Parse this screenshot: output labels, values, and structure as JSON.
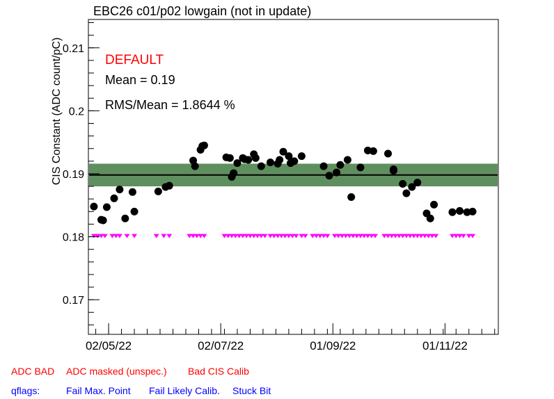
{
  "chart_data": {
    "type": "scatter",
    "title": "EBC26 c01/p02 lowgain (not in update)",
    "ylabel": "CIS Constant (ADC count/pC)",
    "xlabel": "",
    "ylim": [
      0.1645,
      0.2145
    ],
    "xlim": [
      "2022-04-21",
      "2022-11-30"
    ],
    "y_ticks": [
      "0.17",
      "0.18",
      "0.19",
      "0.2",
      "0.21"
    ],
    "y_tick_values": [
      0.17,
      0.18,
      0.19,
      0.2,
      0.21
    ],
    "x_ticks": [
      "02/05/22",
      "02/07/22",
      "01/09/22",
      "01/11/22"
    ],
    "x_tick_values": [
      "2022-05-02",
      "2022-07-02",
      "2022-09-01",
      "2022-11-01"
    ],
    "mean_line": 0.1898,
    "rms_band": [
      0.188,
      0.1916
    ],
    "info": {
      "status": "DEFAULT",
      "mean": "Mean = 0.19",
      "rms": "RMS/Mean = 1.8644 %"
    },
    "series": [
      {
        "marker": "circle",
        "color": "#000000",
        "points": [
          [
            "2022-04-24",
            0.1848
          ],
          [
            "2022-04-28",
            0.1827
          ],
          [
            "2022-04-29",
            0.1826
          ],
          [
            "2022-05-01",
            0.1847
          ],
          [
            "2022-05-05",
            0.1861
          ],
          [
            "2022-05-08",
            0.1875
          ],
          [
            "2022-05-11",
            0.1829
          ],
          [
            "2022-05-15",
            0.1871
          ],
          [
            "2022-05-16",
            0.184
          ],
          [
            "2022-05-29",
            0.1872
          ],
          [
            "2022-06-02",
            0.1879
          ],
          [
            "2022-06-04",
            0.1881
          ],
          [
            "2022-06-17",
            0.1921
          ],
          [
            "2022-06-18",
            0.1912
          ],
          [
            "2022-06-21",
            0.1938
          ],
          [
            "2022-06-22",
            0.1944
          ],
          [
            "2022-06-23",
            0.1945
          ],
          [
            "2022-07-05",
            0.1926
          ],
          [
            "2022-07-07",
            0.1925
          ],
          [
            "2022-07-08",
            0.1895
          ],
          [
            "2022-07-09",
            0.1901
          ],
          [
            "2022-07-11",
            0.1917
          ],
          [
            "2022-07-14",
            0.1925
          ],
          [
            "2022-07-15",
            0.1923
          ],
          [
            "2022-07-17",
            0.1922
          ],
          [
            "2022-07-20",
            0.1931
          ],
          [
            "2022-07-21",
            0.1925
          ],
          [
            "2022-07-24",
            0.1912
          ],
          [
            "2022-07-29",
            0.1918
          ],
          [
            "2022-08-02",
            0.1916
          ],
          [
            "2022-08-03",
            0.1922
          ],
          [
            "2022-08-05",
            0.1935
          ],
          [
            "2022-08-08",
            0.1928
          ],
          [
            "2022-08-09",
            0.1917
          ],
          [
            "2022-08-11",
            0.192
          ],
          [
            "2022-08-15",
            0.1928
          ],
          [
            "2022-08-27",
            0.1912
          ],
          [
            "2022-08-30",
            0.1897
          ],
          [
            "2022-09-03",
            0.1902
          ],
          [
            "2022-09-05",
            0.1914
          ],
          [
            "2022-09-09",
            0.1922
          ],
          [
            "2022-09-11",
            0.1863
          ],
          [
            "2022-09-16",
            0.191
          ],
          [
            "2022-09-20",
            0.1937
          ],
          [
            "2022-09-23",
            0.1936
          ],
          [
            "2022-10-01",
            0.1932
          ],
          [
            "2022-10-04",
            0.1907
          ],
          [
            "2022-10-04",
            0.1905
          ],
          [
            "2022-10-09",
            0.1884
          ],
          [
            "2022-10-11",
            0.1869
          ],
          [
            "2022-10-14",
            0.1879
          ],
          [
            "2022-10-17",
            0.1886
          ],
          [
            "2022-10-22",
            0.1837
          ],
          [
            "2022-10-24",
            0.1829
          ],
          [
            "2022-10-26",
            0.1851
          ],
          [
            "2022-11-05",
            0.1839
          ],
          [
            "2022-11-09",
            0.1841
          ],
          [
            "2022-11-13",
            0.1839
          ],
          [
            "2022-11-16",
            0.184
          ]
        ]
      },
      {
        "marker": "triangle-down",
        "color": "#ff00ff",
        "y": 0.1801,
        "dates": [
          "2022-04-24",
          "2022-04-26",
          "2022-04-28",
          "2022-04-30",
          "2022-05-04",
          "2022-05-06",
          "2022-05-08",
          "2022-05-12",
          "2022-05-16",
          "2022-05-28",
          "2022-06-01",
          "2022-06-04",
          "2022-06-15",
          "2022-06-17",
          "2022-06-19",
          "2022-06-21",
          "2022-06-23",
          "2022-07-04",
          "2022-07-06",
          "2022-07-08",
          "2022-07-10",
          "2022-07-12",
          "2022-07-14",
          "2022-07-16",
          "2022-07-18",
          "2022-07-20",
          "2022-07-22",
          "2022-07-24",
          "2022-07-26",
          "2022-07-29",
          "2022-07-31",
          "2022-08-02",
          "2022-08-04",
          "2022-08-06",
          "2022-08-08",
          "2022-08-10",
          "2022-08-12",
          "2022-08-15",
          "2022-08-17",
          "2022-08-21",
          "2022-08-23",
          "2022-08-25",
          "2022-08-27",
          "2022-08-29",
          "2022-09-02",
          "2022-09-04",
          "2022-09-06",
          "2022-09-08",
          "2022-09-10",
          "2022-09-12",
          "2022-09-14",
          "2022-09-16",
          "2022-09-18",
          "2022-09-20",
          "2022-09-22",
          "2022-09-24",
          "2022-09-29",
          "2022-10-01",
          "2022-10-03",
          "2022-10-05",
          "2022-10-07",
          "2022-10-09",
          "2022-10-11",
          "2022-10-13",
          "2022-10-15",
          "2022-10-17",
          "2022-10-19",
          "2022-10-21",
          "2022-10-23",
          "2022-10-25",
          "2022-10-27",
          "2022-11-05",
          "2022-11-07",
          "2022-11-09",
          "2022-11-11",
          "2022-11-14",
          "2022-11-16"
        ]
      }
    ]
  },
  "legend": {
    "adc_bad": "ADC BAD",
    "adc_masked": "ADC masked (unspec.)",
    "bad_cis": "Bad CIS Calib",
    "qflags": "qflags:",
    "fail_max": "Fail Max. Point",
    "fail_likely": "Fail Likely Calib.",
    "stuck_bit": "Stuck Bit"
  },
  "colors": {
    "band": "#5f8f5f",
    "mean_line": "#000000",
    "status": "#ff0000",
    "flag_red": "#ff0000",
    "flag_blue": "#0000ff"
  }
}
